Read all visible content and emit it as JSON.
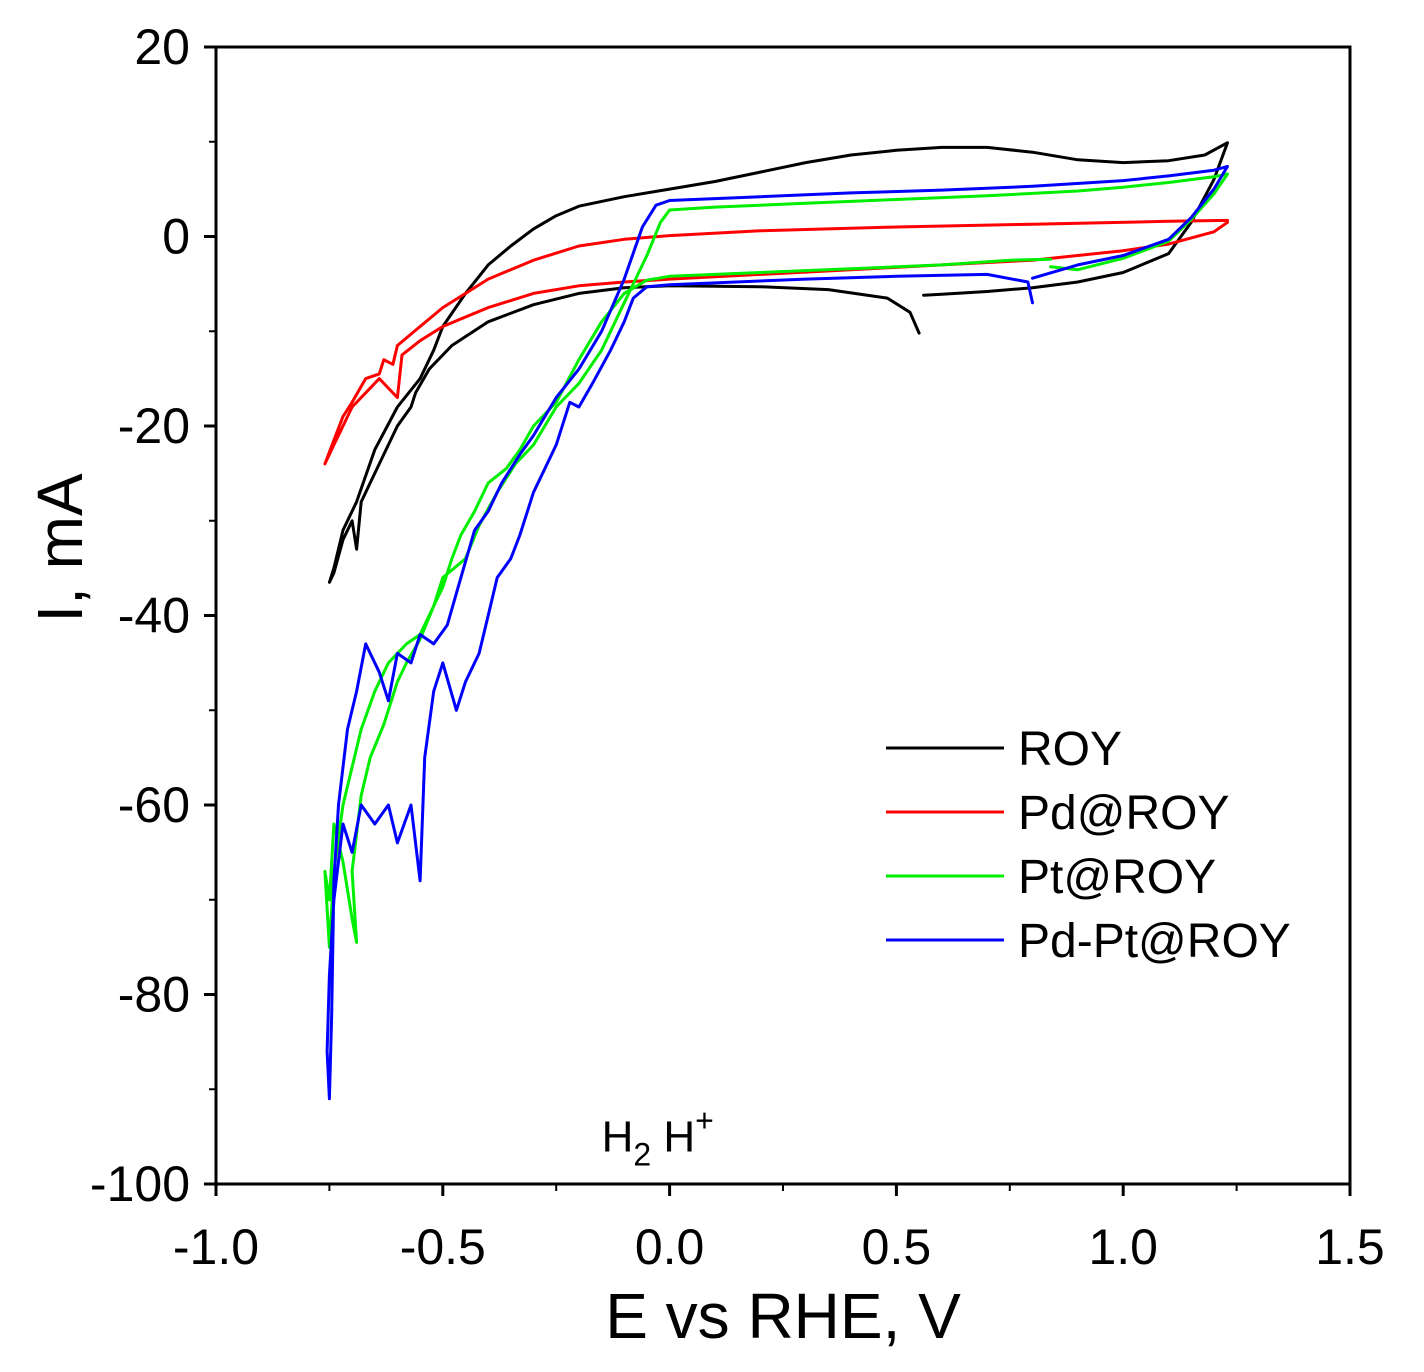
{
  "chart_data": {
    "type": "line",
    "title": "",
    "xlabel": "E vs RHE, V",
    "ylabel": "I, mA",
    "xlim": [
      -1.0,
      1.5
    ],
    "ylim": [
      -100,
      20
    ],
    "xticks": [
      -1.0,
      -0.5,
      0.0,
      0.5,
      1.0,
      1.5
    ],
    "xtick_labels": [
      "-1.0",
      "-0.5",
      "0.0",
      "0.5",
      "1.0",
      "1.5"
    ],
    "yticks": [
      20,
      0,
      -20,
      -40,
      -60,
      -80,
      -100
    ],
    "ytick_labels": [
      "20",
      "0",
      "-20",
      "-40",
      "-60",
      "-80",
      "-100"
    ],
    "grid": false,
    "legend_position": "middle-right",
    "annotation": {
      "main": "H",
      "sub": "2",
      "mid": " H",
      "sup": "+",
      "x": 0.0,
      "y": -95.5
    },
    "series": [
      {
        "name": "ROY",
        "color": "#000000",
        "points": [
          [
            0.55,
            -10.2
          ],
          [
            0.53,
            -8.0
          ],
          [
            0.48,
            -6.5
          ],
          [
            0.35,
            -5.6
          ],
          [
            0.2,
            -5.3
          ],
          [
            0.0,
            -5.2
          ],
          [
            -0.1,
            -5.4
          ],
          [
            -0.2,
            -6.0
          ],
          [
            -0.3,
            -7.2
          ],
          [
            -0.4,
            -9.0
          ],
          [
            -0.48,
            -11.5
          ],
          [
            -0.53,
            -14.0
          ],
          [
            -0.56,
            -16.5
          ],
          [
            -0.57,
            -18.0
          ],
          [
            -0.6,
            -20.0
          ],
          [
            -0.63,
            -23.0
          ],
          [
            -0.66,
            -26.0
          ],
          [
            -0.68,
            -28.0
          ],
          [
            -0.69,
            -33.0
          ],
          [
            -0.7,
            -30.0
          ],
          [
            -0.72,
            -32.0
          ],
          [
            -0.74,
            -35.5
          ],
          [
            -0.75,
            -36.5
          ],
          [
            -0.74,
            -35.0
          ],
          [
            -0.72,
            -31.0
          ],
          [
            -0.69,
            -28.0
          ],
          [
            -0.65,
            -22.5
          ],
          [
            -0.6,
            -18.0
          ],
          [
            -0.55,
            -15.0
          ],
          [
            -0.52,
            -12.0
          ],
          [
            -0.5,
            -9.5
          ],
          [
            -0.45,
            -6.0
          ],
          [
            -0.4,
            -3.0
          ],
          [
            -0.35,
            -1.0
          ],
          [
            -0.3,
            0.8
          ],
          [
            -0.25,
            2.2
          ],
          [
            -0.2,
            3.2
          ],
          [
            -0.1,
            4.2
          ],
          [
            0.0,
            5.0
          ],
          [
            0.1,
            5.8
          ],
          [
            0.2,
            6.8
          ],
          [
            0.3,
            7.8
          ],
          [
            0.4,
            8.6
          ],
          [
            0.5,
            9.1
          ],
          [
            0.6,
            9.4
          ],
          [
            0.7,
            9.4
          ],
          [
            0.8,
            8.9
          ],
          [
            0.9,
            8.1
          ],
          [
            1.0,
            7.8
          ],
          [
            1.1,
            8.0
          ],
          [
            1.18,
            8.6
          ],
          [
            1.23,
            9.9
          ],
          [
            1.2,
            6.0
          ],
          [
            1.15,
            1.5
          ],
          [
            1.1,
            -1.8
          ],
          [
            1.0,
            -3.8
          ],
          [
            0.9,
            -4.8
          ],
          [
            0.8,
            -5.4
          ],
          [
            0.7,
            -5.8
          ],
          [
            0.6,
            -6.1
          ],
          [
            0.56,
            -6.2
          ]
        ]
      },
      {
        "name": "Pd@ROY",
        "color": "#ff0000",
        "points": [
          [
            1.23,
            1.7
          ],
          [
            1.1,
            1.6
          ],
          [
            0.8,
            1.3
          ],
          [
            0.5,
            1.0
          ],
          [
            0.2,
            0.6
          ],
          [
            0.0,
            0.1
          ],
          [
            -0.1,
            -0.3
          ],
          [
            -0.2,
            -1.0
          ],
          [
            -0.3,
            -2.5
          ],
          [
            -0.4,
            -4.5
          ],
          [
            -0.45,
            -6.0
          ],
          [
            -0.5,
            -7.5
          ],
          [
            -0.55,
            -9.5
          ],
          [
            -0.6,
            -11.5
          ],
          [
            -0.61,
            -13.5
          ],
          [
            -0.63,
            -13.0
          ],
          [
            -0.64,
            -14.5
          ],
          [
            -0.67,
            -15.0
          ],
          [
            -0.7,
            -17.5
          ],
          [
            -0.72,
            -19.0
          ],
          [
            -0.74,
            -21.5
          ],
          [
            -0.76,
            -24.0
          ],
          [
            -0.74,
            -22.0
          ],
          [
            -0.72,
            -20.0
          ],
          [
            -0.7,
            -18.0
          ],
          [
            -0.67,
            -16.5
          ],
          [
            -0.64,
            -15.0
          ],
          [
            -0.6,
            -17.0
          ],
          [
            -0.59,
            -12.5
          ],
          [
            -0.55,
            -11.0
          ],
          [
            -0.5,
            -9.5
          ],
          [
            -0.45,
            -8.5
          ],
          [
            -0.4,
            -7.5
          ],
          [
            -0.3,
            -6.0
          ],
          [
            -0.2,
            -5.2
          ],
          [
            -0.1,
            -4.8
          ],
          [
            0.0,
            -4.5
          ],
          [
            0.2,
            -4.0
          ],
          [
            0.4,
            -3.5
          ],
          [
            0.6,
            -3.0
          ],
          [
            0.8,
            -2.5
          ],
          [
            0.9,
            -2.0
          ],
          [
            1.0,
            -1.5
          ],
          [
            1.1,
            -0.8
          ],
          [
            1.2,
            0.5
          ],
          [
            1.23,
            1.5
          ]
        ]
      },
      {
        "name": "Pt@ROY",
        "color": "#00ee00",
        "points": [
          [
            0.84,
            -2.4
          ],
          [
            0.75,
            -2.5
          ],
          [
            0.6,
            -3.0
          ],
          [
            0.4,
            -3.4
          ],
          [
            0.2,
            -3.8
          ],
          [
            0.0,
            -4.2
          ],
          [
            -0.05,
            -4.6
          ],
          [
            -0.1,
            -6.0
          ],
          [
            -0.15,
            -9.0
          ],
          [
            -0.2,
            -13.0
          ],
          [
            -0.25,
            -17.5
          ],
          [
            -0.3,
            -20.0
          ],
          [
            -0.33,
            -22.5
          ],
          [
            -0.36,
            -24.5
          ],
          [
            -0.4,
            -26.0
          ],
          [
            -0.43,
            -29.0
          ],
          [
            -0.46,
            -31.5
          ],
          [
            -0.48,
            -34.0
          ],
          [
            -0.5,
            -37.0
          ],
          [
            -0.52,
            -39.0
          ],
          [
            -0.55,
            -42.5
          ],
          [
            -0.58,
            -45.0
          ],
          [
            -0.6,
            -47.0
          ],
          [
            -0.63,
            -51.5
          ],
          [
            -0.66,
            -55.0
          ],
          [
            -0.68,
            -59.0
          ],
          [
            -0.7,
            -67.0
          ],
          [
            -0.69,
            -74.5
          ],
          [
            -0.7,
            -72.0
          ],
          [
            -0.72,
            -66.0
          ],
          [
            -0.74,
            -62.0
          ],
          [
            -0.75,
            -70.0
          ],
          [
            -0.76,
            -67.0
          ],
          [
            -0.75,
            -75.0
          ],
          [
            -0.74,
            -67.0
          ],
          [
            -0.72,
            -60.0
          ],
          [
            -0.7,
            -56.0
          ],
          [
            -0.68,
            -52.0
          ],
          [
            -0.65,
            -48.0
          ],
          [
            -0.62,
            -45.0
          ],
          [
            -0.58,
            -43.0
          ],
          [
            -0.55,
            -42.0
          ],
          [
            -0.52,
            -39.0
          ],
          [
            -0.5,
            -36.0
          ],
          [
            -0.45,
            -34.0
          ],
          [
            -0.42,
            -30.5
          ],
          [
            -0.38,
            -27.0
          ],
          [
            -0.34,
            -24.0
          ],
          [
            -0.3,
            -22.0
          ],
          [
            -0.25,
            -18.0
          ],
          [
            -0.2,
            -15.5
          ],
          [
            -0.15,
            -12.0
          ],
          [
            -0.1,
            -7.0
          ],
          [
            -0.05,
            -2.0
          ],
          [
            -0.02,
            1.5
          ],
          [
            0.0,
            2.8
          ],
          [
            0.1,
            3.1
          ],
          [
            0.3,
            3.5
          ],
          [
            0.5,
            3.9
          ],
          [
            0.7,
            4.3
          ],
          [
            0.9,
            4.8
          ],
          [
            1.0,
            5.2
          ],
          [
            1.1,
            5.7
          ],
          [
            1.2,
            6.3
          ],
          [
            1.23,
            6.6
          ],
          [
            1.2,
            4.5
          ],
          [
            1.15,
            1.8
          ],
          [
            1.1,
            -0.5
          ],
          [
            1.0,
            -2.3
          ],
          [
            0.9,
            -3.5
          ],
          [
            0.84,
            -3.2
          ]
        ]
      },
      {
        "name": "Pd-Pt@ROY",
        "color": "#0000ff",
        "points": [
          [
            0.8,
            -7.0
          ],
          [
            0.79,
            -4.8
          ],
          [
            0.7,
            -4.0
          ],
          [
            0.5,
            -4.2
          ],
          [
            0.3,
            -4.5
          ],
          [
            0.1,
            -4.9
          ],
          [
            0.0,
            -5.1
          ],
          [
            -0.05,
            -5.3
          ],
          [
            -0.08,
            -6.5
          ],
          [
            -0.1,
            -9.0
          ],
          [
            -0.13,
            -12.0
          ],
          [
            -0.17,
            -15.5
          ],
          [
            -0.2,
            -18.0
          ],
          [
            -0.22,
            -17.5
          ],
          [
            -0.25,
            -22.0
          ],
          [
            -0.28,
            -25.0
          ],
          [
            -0.3,
            -27.0
          ],
          [
            -0.33,
            -31.5
          ],
          [
            -0.35,
            -34.0
          ],
          [
            -0.38,
            -36.0
          ],
          [
            -0.4,
            -40.0
          ],
          [
            -0.42,
            -44.0
          ],
          [
            -0.45,
            -47.0
          ],
          [
            -0.47,
            -50.0
          ],
          [
            -0.5,
            -45.0
          ],
          [
            -0.52,
            -48.0
          ],
          [
            -0.54,
            -55.0
          ],
          [
            -0.55,
            -68.0
          ],
          [
            -0.57,
            -60.0
          ],
          [
            -0.6,
            -64.0
          ],
          [
            -0.62,
            -60.0
          ],
          [
            -0.65,
            -62.0
          ],
          [
            -0.68,
            -60.0
          ],
          [
            -0.7,
            -65.0
          ],
          [
            -0.72,
            -62.0
          ],
          [
            -0.74,
            -70.0
          ],
          [
            -0.75,
            -78.0
          ],
          [
            -0.755,
            -86.0
          ],
          [
            -0.75,
            -91.0
          ],
          [
            -0.745,
            -82.0
          ],
          [
            -0.74,
            -68.0
          ],
          [
            -0.73,
            -60.0
          ],
          [
            -0.71,
            -52.0
          ],
          [
            -0.69,
            -48.0
          ],
          [
            -0.67,
            -43.0
          ],
          [
            -0.64,
            -46.0
          ],
          [
            -0.62,
            -49.0
          ],
          [
            -0.6,
            -44.0
          ],
          [
            -0.57,
            -45.0
          ],
          [
            -0.55,
            -42.0
          ],
          [
            -0.52,
            -43.0
          ],
          [
            -0.49,
            -41.0
          ],
          [
            -0.46,
            -36.0
          ],
          [
            -0.43,
            -31.0
          ],
          [
            -0.4,
            -29.0
          ],
          [
            -0.37,
            -26.0
          ],
          [
            -0.33,
            -23.0
          ],
          [
            -0.3,
            -21.0
          ],
          [
            -0.25,
            -17.0
          ],
          [
            -0.2,
            -14.0
          ],
          [
            -0.15,
            -10.0
          ],
          [
            -0.1,
            -4.5
          ],
          [
            -0.06,
            1.0
          ],
          [
            -0.03,
            3.3
          ],
          [
            0.0,
            3.8
          ],
          [
            0.2,
            4.2
          ],
          [
            0.4,
            4.6
          ],
          [
            0.6,
            4.9
          ],
          [
            0.8,
            5.3
          ],
          [
            1.0,
            5.9
          ],
          [
            1.1,
            6.4
          ],
          [
            1.2,
            7.0
          ],
          [
            1.23,
            7.4
          ],
          [
            1.2,
            5.0
          ],
          [
            1.15,
            2.0
          ],
          [
            1.1,
            -0.3
          ],
          [
            1.0,
            -2.0
          ],
          [
            0.9,
            -3.0
          ],
          [
            0.8,
            -4.4
          ]
        ]
      }
    ]
  }
}
